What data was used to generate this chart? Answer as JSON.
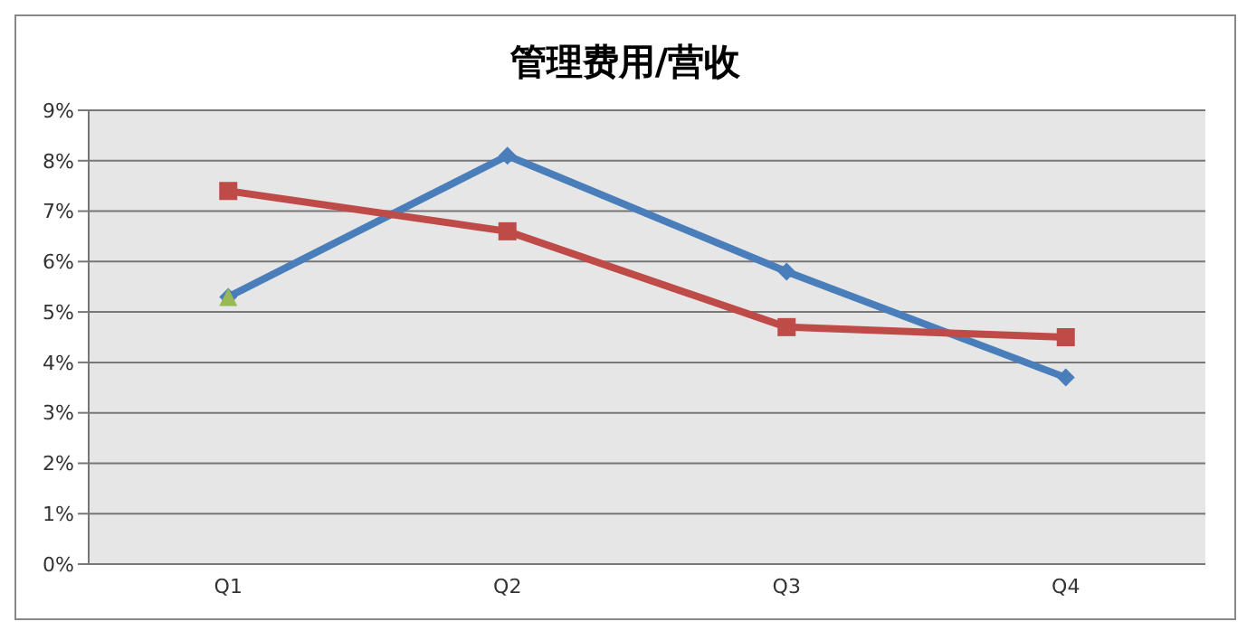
{
  "chart_data": {
    "type": "line",
    "title": "管理费用/营收",
    "categories": [
      "Q1",
      "Q2",
      "Q3",
      "Q4"
    ],
    "series": [
      {
        "color": "#4a7ebb",
        "values": [
          5.3,
          8.1,
          5.8,
          3.7
        ],
        "marker": "diamond"
      },
      {
        "color": "#be4b48",
        "values": [
          7.4,
          6.6,
          4.7,
          4.5
        ],
        "marker": "square"
      },
      {
        "type": "scatter",
        "color": "#98b954",
        "values": [
          5.3,
          null,
          null,
          null
        ],
        "marker": "triangle"
      }
    ],
    "ylim": [
      0,
      9
    ],
    "yticks": [
      {
        "value": 0,
        "label": "0%"
      },
      {
        "value": 1,
        "label": "1%"
      },
      {
        "value": 2,
        "label": "2%"
      },
      {
        "value": 3,
        "label": "3%"
      },
      {
        "value": 4,
        "label": "4%"
      },
      {
        "value": 5,
        "label": "5%"
      },
      {
        "value": 6,
        "label": "6%"
      },
      {
        "value": 7,
        "label": "7%"
      },
      {
        "value": 8,
        "label": "8%"
      },
      {
        "value": 9,
        "label": "9%"
      }
    ],
    "grid": "y",
    "legend": false,
    "line_style": "solid"
  }
}
